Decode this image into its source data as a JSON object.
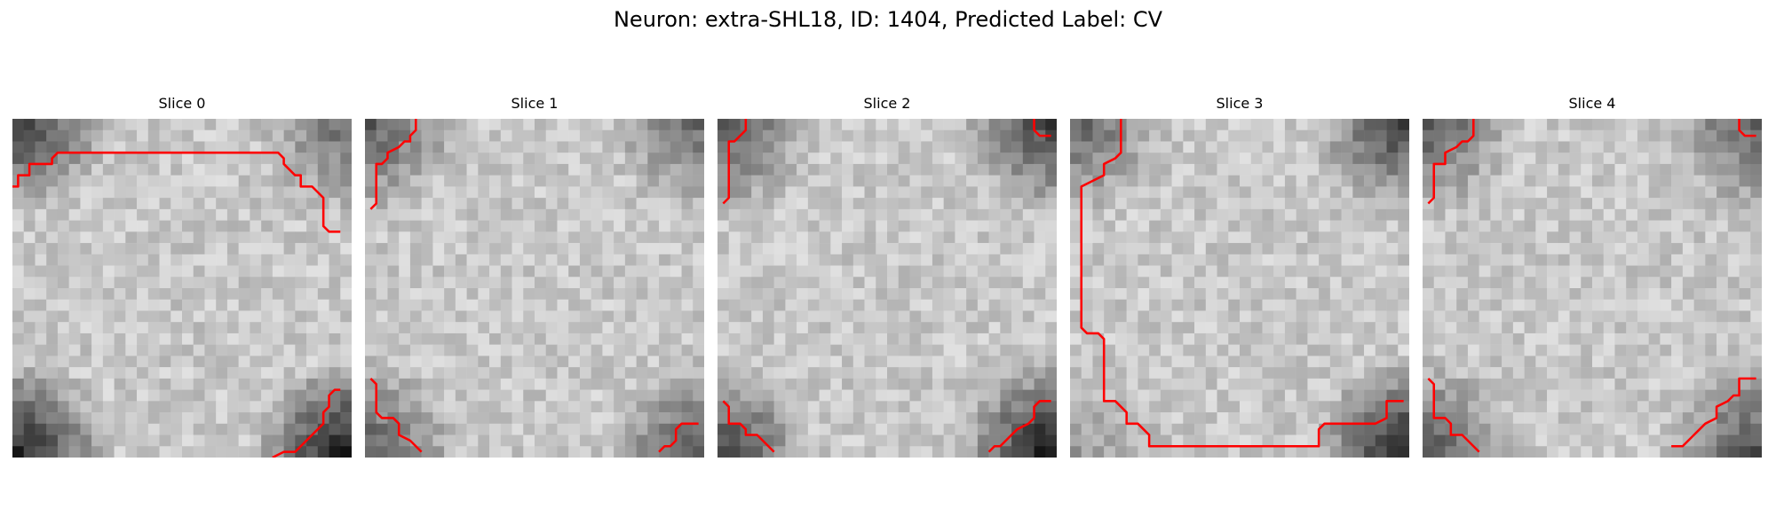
{
  "figure": {
    "title": "Neuron: extra-SHL18, ID: 1404, Predicted Label: CV"
  },
  "panels": [
    {
      "title": "Slice 0",
      "vignette": {
        "top-left": 0.75,
        "top-right": 0.5,
        "bottom-left": 0.9,
        "bottom-right": 1.0
      },
      "contours": [
        [
          [
            0.0,
            6
          ],
          [
            0.5,
            6
          ],
          [
            0.5,
            5
          ],
          [
            1.5,
            5
          ],
          [
            1.5,
            4
          ],
          [
            3.5,
            4
          ],
          [
            3.5,
            3.5
          ],
          [
            4,
            3
          ],
          [
            12,
            3
          ],
          [
            23.5,
            3
          ],
          [
            24,
            3.5
          ],
          [
            24,
            4
          ],
          [
            25,
            5
          ],
          [
            25.5,
            5
          ],
          [
            25.5,
            6
          ],
          [
            26.5,
            6
          ],
          [
            27,
            6.5
          ],
          [
            27.5,
            7
          ],
          [
            27.5,
            9.5
          ],
          [
            28,
            10
          ],
          [
            29,
            10
          ]
        ],
        [
          [
            23,
            30
          ],
          [
            24,
            29.5
          ],
          [
            25,
            29.5
          ],
          [
            25.5,
            29
          ],
          [
            26,
            28.5
          ],
          [
            26.5,
            28
          ],
          [
            27.5,
            27
          ],
          [
            27.5,
            26
          ],
          [
            28,
            25.5
          ],
          [
            28,
            24.5
          ],
          [
            28.5,
            24
          ],
          [
            29,
            24
          ]
        ]
      ]
    },
    {
      "title": "Slice 1",
      "vignette": {
        "top-left": 0.6,
        "top-right": 0.5,
        "bottom-left": 0.6,
        "bottom-right": 0.65
      },
      "contours": [
        [
          [
            0.5,
            8
          ],
          [
            1,
            7.5
          ],
          [
            1,
            4
          ],
          [
            1.5,
            4
          ],
          [
            2,
            3.5
          ],
          [
            2,
            3
          ],
          [
            3,
            2.5
          ],
          [
            3.5,
            2
          ],
          [
            4,
            2
          ],
          [
            4,
            1.5
          ],
          [
            4.5,
            1
          ],
          [
            4.5,
            0
          ]
        ],
        [
          [
            0.5,
            23
          ],
          [
            1,
            23.5
          ],
          [
            1,
            26
          ],
          [
            1.5,
            26.5
          ],
          [
            2.5,
            26.5
          ],
          [
            3,
            27
          ],
          [
            3,
            28
          ],
          [
            4,
            28.5
          ],
          [
            4.5,
            29
          ],
          [
            5,
            29.5
          ]
        ],
        [
          [
            26,
            29.5
          ],
          [
            26.5,
            29
          ],
          [
            27,
            29
          ],
          [
            27.5,
            28.5
          ],
          [
            27.5,
            27.5
          ],
          [
            28,
            27
          ],
          [
            28.5,
            27
          ],
          [
            29.5,
            27
          ]
        ]
      ]
    },
    {
      "title": "Slice 2",
      "vignette": {
        "top-left": 0.65,
        "top-right": 0.75,
        "bottom-left": 0.7,
        "bottom-right": 1.0
      },
      "contours": [
        [
          [
            0.5,
            7.5
          ],
          [
            1,
            7
          ],
          [
            1,
            2
          ],
          [
            1.5,
            2
          ],
          [
            2,
            1.5
          ],
          [
            2.5,
            1
          ],
          [
            2.5,
            0
          ]
        ],
        [
          [
            28,
            0
          ],
          [
            28,
            1
          ],
          [
            28.5,
            1.5
          ],
          [
            29.5,
            1.5
          ]
        ],
        [
          [
            0.5,
            25
          ],
          [
            1,
            25.5
          ],
          [
            1,
            27
          ],
          [
            2,
            27
          ],
          [
            2.5,
            27.5
          ],
          [
            2.5,
            28
          ],
          [
            3.5,
            28
          ],
          [
            4,
            28.5
          ],
          [
            4.5,
            29
          ],
          [
            5,
            29.5
          ]
        ],
        [
          [
            24,
            29.5
          ],
          [
            24.5,
            29
          ],
          [
            25,
            29
          ],
          [
            25.5,
            28.5
          ],
          [
            26,
            28
          ],
          [
            26.5,
            27.5
          ],
          [
            27.5,
            27
          ],
          [
            28,
            26.5
          ],
          [
            28,
            25.5
          ],
          [
            28.5,
            25
          ],
          [
            29.5,
            25
          ]
        ]
      ]
    },
    {
      "title": "Slice 3",
      "vignette": {
        "top-left": 0.55,
        "top-right": 0.75,
        "bottom-left": 0.25,
        "bottom-right": 0.95
      },
      "contours": [
        [
          [
            4.5,
            0
          ],
          [
            4.5,
            3
          ],
          [
            4,
            3.5
          ],
          [
            3,
            4
          ],
          [
            3,
            5
          ],
          [
            2,
            5.5
          ],
          [
            1,
            6
          ],
          [
            1,
            18.5
          ],
          [
            1.5,
            19
          ],
          [
            2.5,
            19
          ],
          [
            3,
            19.5
          ],
          [
            3,
            25
          ],
          [
            4,
            25
          ],
          [
            4.5,
            25.5
          ],
          [
            5,
            26
          ],
          [
            5,
            27
          ],
          [
            6,
            27
          ],
          [
            6.5,
            27.5
          ],
          [
            7,
            28
          ],
          [
            7,
            29
          ],
          [
            22,
            29
          ],
          [
            22,
            27.5
          ],
          [
            22.5,
            27
          ],
          [
            27,
            27
          ],
          [
            28,
            26.5
          ],
          [
            28,
            25
          ],
          [
            29.5,
            25
          ]
        ]
      ]
    },
    {
      "title": "Slice 4",
      "vignette": {
        "top-left": 0.6,
        "top-right": 0.6,
        "bottom-left": 0.65,
        "bottom-right": 0.65
      },
      "contours": [
        [
          [
            0.5,
            7.5
          ],
          [
            1,
            7
          ],
          [
            1,
            4
          ],
          [
            2,
            4
          ],
          [
            2,
            3
          ],
          [
            3,
            2.5
          ],
          [
            3.5,
            2
          ],
          [
            4,
            2
          ],
          [
            4.5,
            1.5
          ],
          [
            4.5,
            0
          ]
        ],
        [
          [
            28,
            0
          ],
          [
            28,
            1
          ],
          [
            28.5,
            1.5
          ],
          [
            29.5,
            1.5
          ]
        ],
        [
          [
            0.5,
            23
          ],
          [
            1,
            23.5
          ],
          [
            1,
            26.5
          ],
          [
            2,
            26.5
          ],
          [
            2.5,
            27
          ],
          [
            2.5,
            28
          ],
          [
            3.5,
            28
          ],
          [
            4,
            28.5
          ],
          [
            4.5,
            29
          ],
          [
            5,
            29.5
          ]
        ],
        [
          [
            22,
            29
          ],
          [
            23,
            29
          ],
          [
            23.5,
            28.5
          ],
          [
            24,
            28
          ],
          [
            24.5,
            27.5
          ],
          [
            25,
            27
          ],
          [
            26,
            26.5
          ],
          [
            26,
            25.5
          ],
          [
            27,
            25
          ],
          [
            27.5,
            24.5
          ],
          [
            28,
            24.5
          ],
          [
            28,
            23
          ],
          [
            28.5,
            23
          ],
          [
            29.5,
            23
          ]
        ]
      ]
    }
  ]
}
